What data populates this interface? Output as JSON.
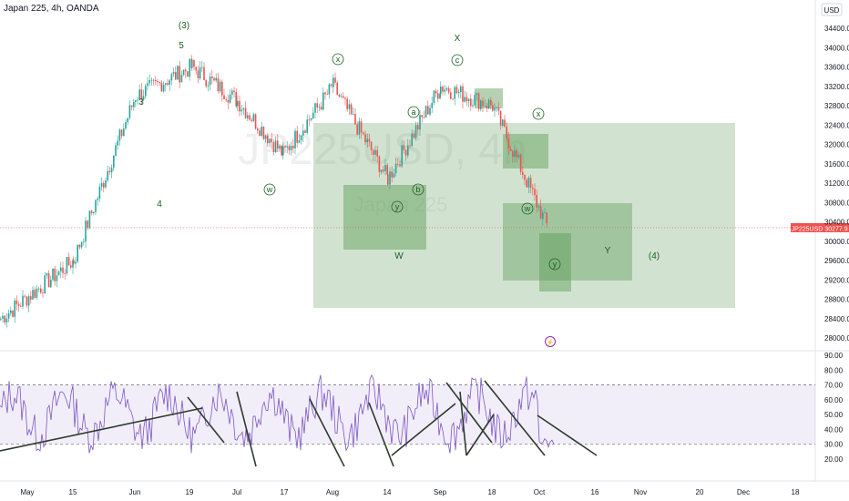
{
  "header": {
    "symbol_line": "Japan 225, 4h, OANDA"
  },
  "axis": {
    "currency": "USD",
    "price_ticks": [
      "34400.0",
      "34000.0",
      "33600.0",
      "33200.0",
      "32800.0",
      "32400.0",
      "32000.0",
      "31600.0",
      "31200.0",
      "30800.0",
      "30400.0",
      "30000.0",
      "29600.0",
      "29200.0",
      "28800.0",
      "28400.0",
      "28000.0"
    ],
    "price_values": [
      34400,
      34000,
      33600,
      33200,
      32800,
      32400,
      32000,
      31600,
      31200,
      30800,
      30400,
      30000,
      29600,
      29200,
      28800,
      28400,
      28000
    ],
    "rsi_ticks": [
      "90.00",
      "80.00",
      "70.00",
      "60.00",
      "50.00",
      "40.00",
      "30.00",
      "20.00"
    ],
    "rsi_values": [
      90,
      80,
      70,
      60,
      50,
      40,
      30,
      20
    ],
    "time_ticks": [
      "May",
      "15",
      "Jun",
      "19",
      "Jul",
      "17",
      "Aug",
      "14",
      "Sep",
      "18",
      "Oct",
      "16",
      "Nov",
      "20",
      "Dec",
      "18"
    ]
  },
  "price_label": {
    "symbol": "JP225USD",
    "value": "30277.9"
  },
  "watermark": {
    "symbol": "JP225USD, 4h",
    "name": "Japan 225"
  },
  "wave_labels": [
    {
      "text": "(3)",
      "kind": "plain"
    },
    {
      "text": "5",
      "kind": "plain"
    },
    {
      "text": "3",
      "kind": "plain"
    },
    {
      "text": "4",
      "kind": "plain"
    },
    {
      "text": "X",
      "kind": "plain"
    },
    {
      "text": "W",
      "kind": "plain"
    },
    {
      "text": "Y",
      "kind": "plain"
    },
    {
      "text": "(4)",
      "kind": "plain"
    },
    {
      "text": "x",
      "kind": "circle"
    },
    {
      "text": "c",
      "kind": "circle"
    },
    {
      "text": "a",
      "kind": "circle"
    },
    {
      "text": "b",
      "kind": "circle"
    },
    {
      "text": "w",
      "kind": "circle"
    },
    {
      "text": "y",
      "kind": "circle"
    },
    {
      "text": "x",
      "kind": "circle"
    },
    {
      "text": "w",
      "kind": "circle"
    },
    {
      "text": "y",
      "kind": "circle"
    }
  ],
  "colors": {
    "up": "#26a69a",
    "down": "#ef5350",
    "rsi": "#7e57c2",
    "box": "#5b9a55",
    "trendline": "#2e3b2e",
    "axis_text": "#131722"
  },
  "chart_data": {
    "type": "candlestick",
    "title": "Japan 225, 4h, OANDA",
    "x": [
      "May",
      "15",
      "Jun",
      "19",
      "Jul",
      "17",
      "Aug",
      "14",
      "Sep",
      "18",
      "Oct",
      "16",
      "Nov",
      "20",
      "Dec",
      "18"
    ],
    "ylim": [
      27800,
      34800
    ],
    "last_price": 30277.9,
    "price_path": [
      [
        "May",
        28400
      ],
      [
        "15",
        29600
      ],
      [
        "Jun",
        33000
      ],
      [
        "19",
        33600
      ],
      [
        "Jul",
        32900
      ],
      [
        "17",
        31800
      ],
      [
        "Aug",
        33200
      ],
      [
        "14",
        31300
      ],
      [
        "Sep",
        33200
      ],
      [
        "18",
        32800
      ],
      [
        "Oct",
        30300
      ]
    ],
    "rsi": {
      "ylim": [
        20,
        90
      ],
      "overbought": 70,
      "oversold": 30
    }
  }
}
